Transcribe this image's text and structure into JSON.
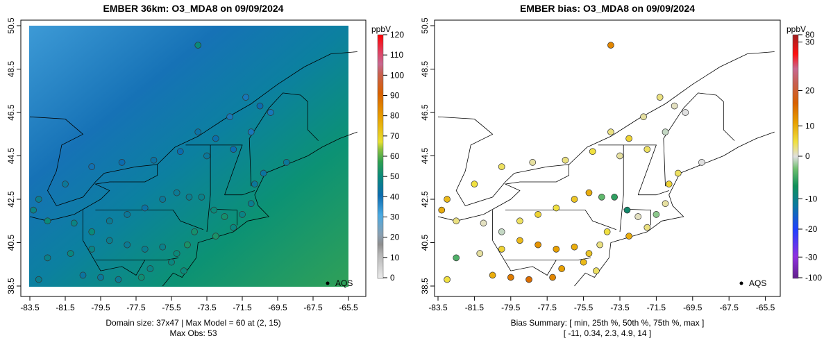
{
  "chart_data": [
    {
      "type": "scatter",
      "title": "EMBER 36km: O3_MDA8 on 09/09/2024",
      "xticks": [
        "-83.5",
        "-81.5",
        "-79.5",
        "-77.5",
        "-75.5",
        "-73.5",
        "-71.5",
        "-69.5",
        "-67.5",
        "-65.5"
      ],
      "yticks": [
        "38.5",
        "40.5",
        "42.5",
        "44.5",
        "46.5",
        "48.5",
        "50.5"
      ],
      "xlim": [
        -83.5,
        -65.5
      ],
      "ylim": [
        38.5,
        50.5
      ],
      "colorbar": {
        "unit": "ppbV",
        "ticks": [
          "0",
          "10",
          "20",
          "30",
          "40",
          "50",
          "60",
          "70",
          "80",
          "90",
          "100",
          "110",
          "120"
        ],
        "range": [
          0,
          120
        ]
      },
      "legend": {
        "label": "AQS",
        "placement": "bottom-right"
      },
      "footer": [
        "Domain size: 37x47 | Max Model = 60 at (2, 15)",
        "Max Obs: 53"
      ],
      "value_field": "obs"
    },
    {
      "type": "scatter",
      "title": "EMBER bias: O3_MDA8 on 09/09/2024",
      "xticks": [
        "-83.5",
        "-81.5",
        "-79.5",
        "-77.5",
        "-75.5",
        "-73.5",
        "-71.5",
        "-69.5",
        "-67.5",
        "-65.5"
      ],
      "yticks": [
        "38.5",
        "40.5",
        "42.5",
        "44.5",
        "46.5",
        "48.5",
        "50.5"
      ],
      "xlim": [
        -83.5,
        -65.5
      ],
      "ylim": [
        38.5,
        50.5
      ],
      "colorbar": {
        "unit": "ppbV",
        "ticks": [
          "-100",
          "-30",
          "-20",
          "-10",
          "0",
          "10",
          "20",
          "30",
          "80"
        ]
      },
      "legend": {
        "label": "AQS",
        "placement": "bottom-right"
      },
      "footer": [
        "Bias Summary: [ min, 25th %, 50th %, 75th %, max ]",
        "[ -11,   0.34,   2.3,   4.9,   14 ]"
      ],
      "value_field": "bias"
    }
  ],
  "stations": [
    [
      -74.0,
      49.6,
      50,
      12
    ],
    [
      -71.3,
      47.2,
      38,
      3
    ],
    [
      -70.5,
      46.8,
      40,
      1
    ],
    [
      -69.9,
      46.5,
      38,
      0
    ],
    [
      -72.2,
      46.3,
      38,
      2
    ],
    [
      -74.0,
      45.6,
      42,
      3
    ],
    [
      -73.0,
      45.3,
      41,
      6
    ],
    [
      -71.0,
      45.6,
      38,
      -1
    ],
    [
      -72.0,
      44.8,
      40,
      4
    ],
    [
      -73.5,
      44.5,
      44,
      2
    ],
    [
      -75.0,
      44.7,
      40,
      5
    ],
    [
      -76.5,
      44.3,
      42,
      3
    ],
    [
      -78.3,
      44.2,
      40,
      2
    ],
    [
      -80.0,
      44.0,
      39,
      4
    ],
    [
      -81.5,
      43.2,
      44,
      5
    ],
    [
      -83.0,
      42.5,
      46,
      8
    ],
    [
      -83.3,
      42.0,
      48,
      9
    ],
    [
      -82.5,
      41.5,
      50,
      3
    ],
    [
      -81.0,
      41.4,
      48,
      1
    ],
    [
      -80.0,
      41.0,
      50,
      -1
    ],
    [
      -79.0,
      41.5,
      45,
      4
    ],
    [
      -78.0,
      41.8,
      44,
      6
    ],
    [
      -77.0,
      42.1,
      42,
      5
    ],
    [
      -76.0,
      42.5,
      44,
      7
    ],
    [
      -75.2,
      42.8,
      45,
      9
    ],
    [
      -74.5,
      42.6,
      46,
      -5
    ],
    [
      -73.8,
      42.6,
      47,
      -8
    ],
    [
      -73.1,
      42.0,
      50,
      -11
    ],
    [
      -72.5,
      41.7,
      52,
      1
    ],
    [
      -71.5,
      41.8,
      48,
      -3
    ],
    [
      -71.0,
      42.3,
      46,
      2
    ],
    [
      -70.8,
      43.2,
      44,
      6
    ],
    [
      -70.3,
      43.7,
      43,
      4
    ],
    [
      -69.0,
      44.2,
      44,
      0
    ],
    [
      -74.2,
      41.0,
      52,
      5
    ],
    [
      -74.6,
      40.4,
      53,
      3
    ],
    [
      -75.2,
      40.0,
      50,
      7
    ],
    [
      -76.0,
      40.3,
      47,
      9
    ],
    [
      -77.0,
      40.2,
      46,
      10
    ],
    [
      -78.0,
      40.4,
      45,
      11
    ],
    [
      -79.0,
      40.6,
      46,
      8
    ],
    [
      -80.0,
      40.2,
      48,
      6
    ],
    [
      -81.2,
      40.0,
      49,
      2
    ],
    [
      -82.5,
      39.8,
      47,
      -6
    ],
    [
      -76.7,
      39.3,
      48,
      10
    ],
    [
      -77.2,
      38.9,
      51,
      12
    ],
    [
      -78.5,
      38.8,
      45,
      14
    ],
    [
      -79.5,
      38.9,
      44,
      13
    ],
    [
      -80.5,
      39.0,
      43,
      9
    ],
    [
      -83.0,
      38.8,
      46,
      5
    ],
    [
      -75.5,
      39.6,
      49,
      8
    ],
    [
      -74.8,
      39.2,
      50,
      4
    ],
    [
      -73.0,
      40.8,
      53,
      9
    ],
    [
      -72.0,
      41.2,
      49,
      3
    ]
  ],
  "colors": {
    "frame": "#000000"
  }
}
